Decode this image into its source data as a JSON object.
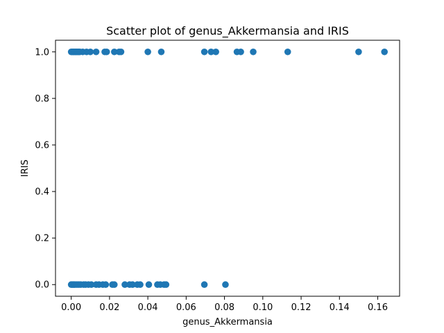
{
  "chart_data": {
    "type": "scatter",
    "title": "Scatter plot of genus_Akkermansia and IRIS",
    "xlabel": "genus_Akkermansia",
    "ylabel": "IRIS",
    "xlim": [
      -0.0082,
      0.1714
    ],
    "ylim": [
      -0.05,
      1.05
    ],
    "xticks": [
      0.0,
      0.02,
      0.04,
      0.06,
      0.08,
      0.1,
      0.12,
      0.14,
      0.16
    ],
    "xtick_labels": [
      "0.00",
      "0.02",
      "0.04",
      "0.06",
      "0.08",
      "0.10",
      "0.12",
      "0.14",
      "0.16"
    ],
    "yticks": [
      0.0,
      0.2,
      0.4,
      0.6,
      0.8,
      1.0
    ],
    "ytick_labels": [
      "0.0",
      "0.2",
      "0.4",
      "0.6",
      "0.8",
      "1.0"
    ],
    "grid": false,
    "marker_color": "#1f77b4",
    "series": [
      {
        "points": [
          [
            0.0,
            1
          ],
          [
            0.0005,
            1
          ],
          [
            0.001,
            1
          ],
          [
            0.0015,
            1
          ],
          [
            0.002,
            1
          ],
          [
            0.0025,
            1
          ],
          [
            0.003,
            1
          ],
          [
            0.0035,
            1
          ],
          [
            0.004,
            1
          ],
          [
            0.0045,
            1
          ],
          [
            0.006,
            1
          ],
          [
            0.008,
            1
          ],
          [
            0.01,
            1
          ],
          [
            0.013,
            1
          ],
          [
            0.0175,
            1
          ],
          [
            0.0185,
            1
          ],
          [
            0.0225,
            1
          ],
          [
            0.025,
            1
          ],
          [
            0.026,
            1
          ],
          [
            0.04,
            1
          ],
          [
            0.047,
            1
          ],
          [
            0.0695,
            1
          ],
          [
            0.073,
            1
          ],
          [
            0.0755,
            1
          ],
          [
            0.0865,
            1
          ],
          [
            0.0885,
            1
          ],
          [
            0.095,
            1
          ],
          [
            0.113,
            1
          ],
          [
            0.15,
            1
          ],
          [
            0.1635,
            1
          ],
          [
            0.0,
            0
          ],
          [
            0.0005,
            0
          ],
          [
            0.001,
            0
          ],
          [
            0.0015,
            0
          ],
          [
            0.002,
            0
          ],
          [
            0.003,
            0
          ],
          [
            0.004,
            0
          ],
          [
            0.005,
            0
          ],
          [
            0.0065,
            0
          ],
          [
            0.0075,
            0
          ],
          [
            0.009,
            0
          ],
          [
            0.0105,
            0
          ],
          [
            0.013,
            0
          ],
          [
            0.0145,
            0
          ],
          [
            0.0165,
            0
          ],
          [
            0.018,
            0
          ],
          [
            0.0215,
            0
          ],
          [
            0.0225,
            0
          ],
          [
            0.028,
            0
          ],
          [
            0.0305,
            0
          ],
          [
            0.032,
            0
          ],
          [
            0.0345,
            0
          ],
          [
            0.036,
            0
          ],
          [
            0.0405,
            0
          ],
          [
            0.045,
            0
          ],
          [
            0.0465,
            0
          ],
          [
            0.0485,
            0
          ],
          [
            0.0495,
            0
          ],
          [
            0.0695,
            0
          ],
          [
            0.0805,
            0
          ]
        ]
      }
    ]
  }
}
